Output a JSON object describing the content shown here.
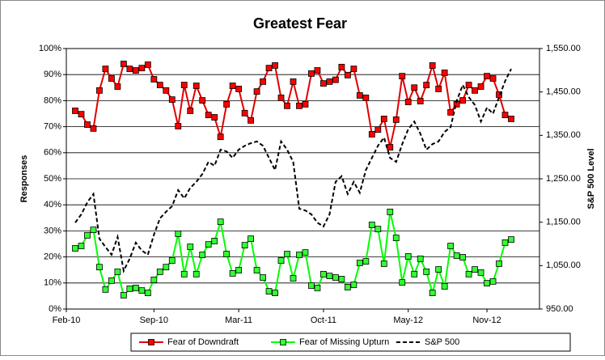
{
  "chart_data": {
    "type": "line",
    "title": "Greatest Fear",
    "y_label": "Responses",
    "y2_label": "S&P 500 Level",
    "categories": [
      "Feb-10",
      null,
      null,
      null,
      null,
      null,
      null,
      null,
      null,
      null,
      null,
      null,
      null,
      "Sep-10",
      null,
      null,
      null,
      null,
      null,
      null,
      null,
      null,
      null,
      null,
      null,
      null,
      null,
      "Mar-11",
      null,
      null,
      null,
      null,
      null,
      null,
      null,
      null,
      null,
      null,
      null,
      null,
      null,
      "Oct-11",
      null,
      null,
      null,
      null,
      null,
      null,
      null,
      null,
      null,
      null,
      null,
      null,
      null,
      "May-12",
      null,
      null,
      null,
      null,
      null,
      null,
      null,
      null,
      null,
      null,
      null,
      null,
      "Nov-12",
      null,
      null,
      null,
      null
    ],
    "series": [
      {
        "name": "Fear of Downdraft",
        "color": "#e00000",
        "marker_color": "#ff0000",
        "values": [
          76.1,
          74.8,
          70.8,
          69.3,
          83.9,
          92.2,
          88.5,
          85.4,
          94.1,
          92.2,
          91.6,
          92.5,
          93.8,
          88.2,
          86,
          83.9,
          80.4,
          70.2,
          86,
          76.1,
          85.7,
          80.1,
          74.5,
          73.6,
          66.1,
          78.6,
          85.7,
          84.5,
          75.2,
          72.4,
          83.5,
          87.3,
          92.5,
          93.5,
          81.1,
          78,
          87.3,
          78,
          78.6,
          90.4,
          91.6,
          86.6,
          87.3,
          88,
          92.9,
          89.8,
          92.2,
          82,
          81.1,
          67.1,
          68.9,
          73,
          62.1,
          72.7,
          89.4,
          79.5,
          85,
          79.8,
          86,
          93.5,
          84.5,
          90.7,
          75.5,
          78.6,
          80.1,
          86,
          83.9,
          85.4,
          89.4,
          88.5,
          82.3,
          74.5,
          73
        ]
      },
      {
        "name": "Fear of Missing Upturn",
        "color": "#00ff00",
        "marker_color": "#33ff33",
        "values": [
          23.3,
          24.2,
          28.3,
          30.4,
          16.1,
          7.5,
          10.9,
          14.3,
          5.3,
          7.8,
          8.1,
          7.1,
          6.2,
          11.2,
          14.3,
          16.1,
          18.6,
          28.9,
          13.4,
          23.9,
          13.4,
          20.8,
          24.8,
          26.1,
          33.5,
          21.1,
          13.7,
          14.9,
          24.5,
          27,
          14.9,
          12.1,
          6.8,
          6.2,
          18.6,
          21.1,
          11.8,
          20.8,
          21.7,
          9,
          8.1,
          13.4,
          12.7,
          12.1,
          11.5,
          8.4,
          9.3,
          17.7,
          18.3,
          32.3,
          30.7,
          17.4,
          37.3,
          27.3,
          10.2,
          20.2,
          13.4,
          19.3,
          14.3,
          6.2,
          15.2,
          8.7,
          24.2,
          20.5,
          19.9,
          13.4,
          15.2,
          14,
          9.9,
          10.6,
          17.4,
          25.5,
          26.7
        ]
      },
      {
        "name": "S&P 500",
        "color": "#000000",
        "axis": "y2",
        "dashed": true,
        "values": [
          1149,
          1168,
          1196,
          1215,
          1112,
          1093,
          1075,
          1116,
          1038,
          1066,
          1103,
          1085,
          1075,
          1121,
          1159,
          1174,
          1187,
          1224,
          1205,
          1229,
          1243,
          1261,
          1289,
          1280,
          1317,
          1313,
          1298,
          1317,
          1326,
          1332,
          1336,
          1326,
          1298,
          1270,
          1336,
          1317,
          1289,
          1181,
          1177,
          1168,
          1149,
          1140,
          1168,
          1243,
          1256,
          1215,
          1243,
          1218,
          1270,
          1298,
          1326,
          1345,
          1298,
          1289,
          1330,
          1364,
          1382,
          1354,
          1317,
          1330,
          1336,
          1358,
          1369,
          1429,
          1466,
          1438,
          1420,
          1382,
          1414,
          1400,
          1438,
          1475,
          1503
        ]
      }
    ],
    "ylim": [
      0,
      100
    ],
    "yticks": [
      {
        "value": 0,
        "label": "0%"
      },
      {
        "value": 10,
        "label": "10%"
      },
      {
        "value": 20,
        "label": "20%"
      },
      {
        "value": 30,
        "label": "30%"
      },
      {
        "value": 40,
        "label": "40%"
      },
      {
        "value": 50,
        "label": "50%"
      },
      {
        "value": 60,
        "label": "60%"
      },
      {
        "value": 70,
        "label": "70%"
      },
      {
        "value": 80,
        "label": "80%"
      },
      {
        "value": 90,
        "label": "90%"
      },
      {
        "value": 100,
        "label": "100%"
      }
    ],
    "y2lim": [
      950,
      1550
    ],
    "y2ticks": [
      {
        "value": 950,
        "label": "950.00"
      },
      {
        "value": 1050,
        "label": "1,050.00"
      },
      {
        "value": 1150,
        "label": "1,150.00"
      },
      {
        "value": 1250,
        "label": "1,250.00"
      },
      {
        "value": 1350,
        "label": "1,350.00"
      },
      {
        "value": 1450,
        "label": "1,450.00"
      },
      {
        "value": 1550,
        "label": "1,550.00"
      }
    ],
    "grid": true,
    "legend": "bottom"
  }
}
